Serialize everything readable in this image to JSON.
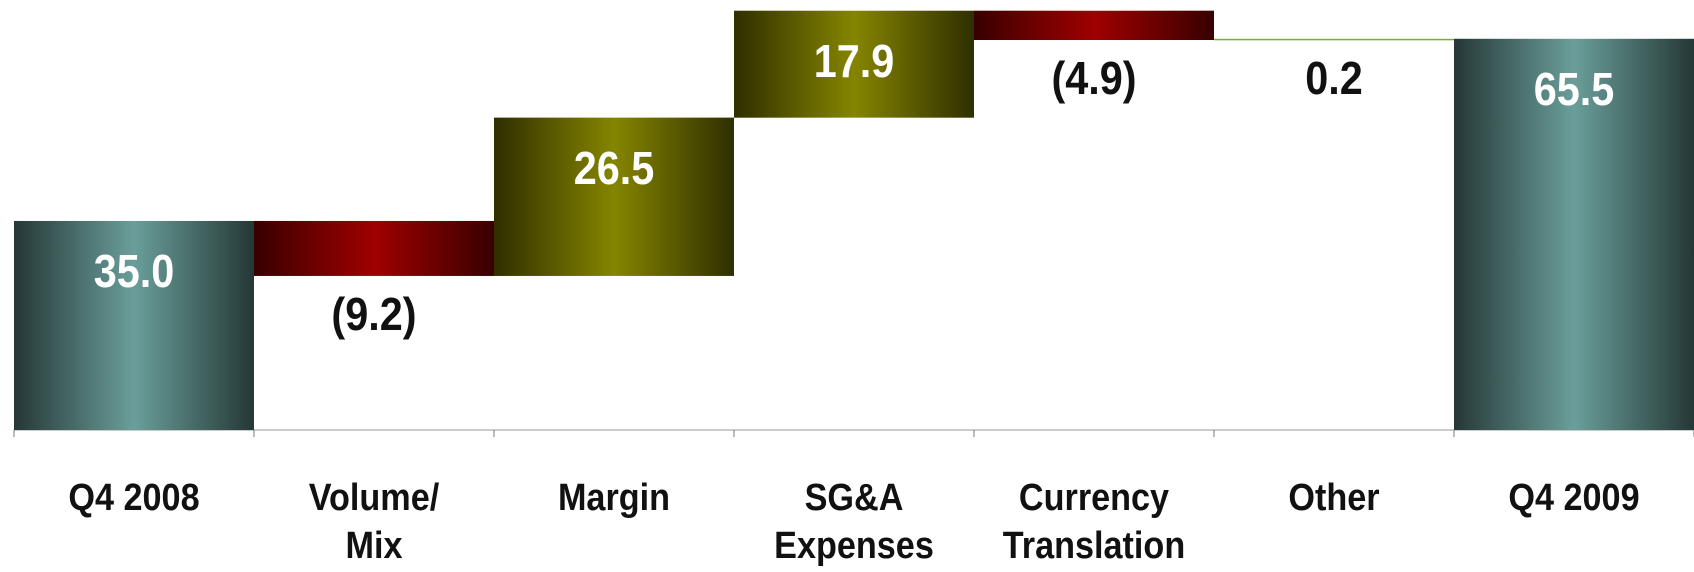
{
  "chart_data": {
    "type": "waterfall",
    "categories": [
      "Q4 2008",
      "Volume/\nMix",
      "Margin",
      "SG&A\nExpenses",
      "Currency\nTranslation",
      "Other",
      "Q4 2009"
    ],
    "values": [
      35.0,
      -9.2,
      26.5,
      17.9,
      -4.9,
      0.2,
      65.5
    ],
    "value_labels": [
      "35.0",
      "(9.2)",
      "26.5",
      "17.9",
      "(4.9)",
      "0.2",
      "65.5"
    ],
    "colors": [
      "#6a9e9a",
      "#a00000",
      "#858500",
      "#858500",
      "#a00000",
      "#7ab317",
      "#6a9e9a"
    ],
    "ylim": [
      0,
      72
    ]
  }
}
